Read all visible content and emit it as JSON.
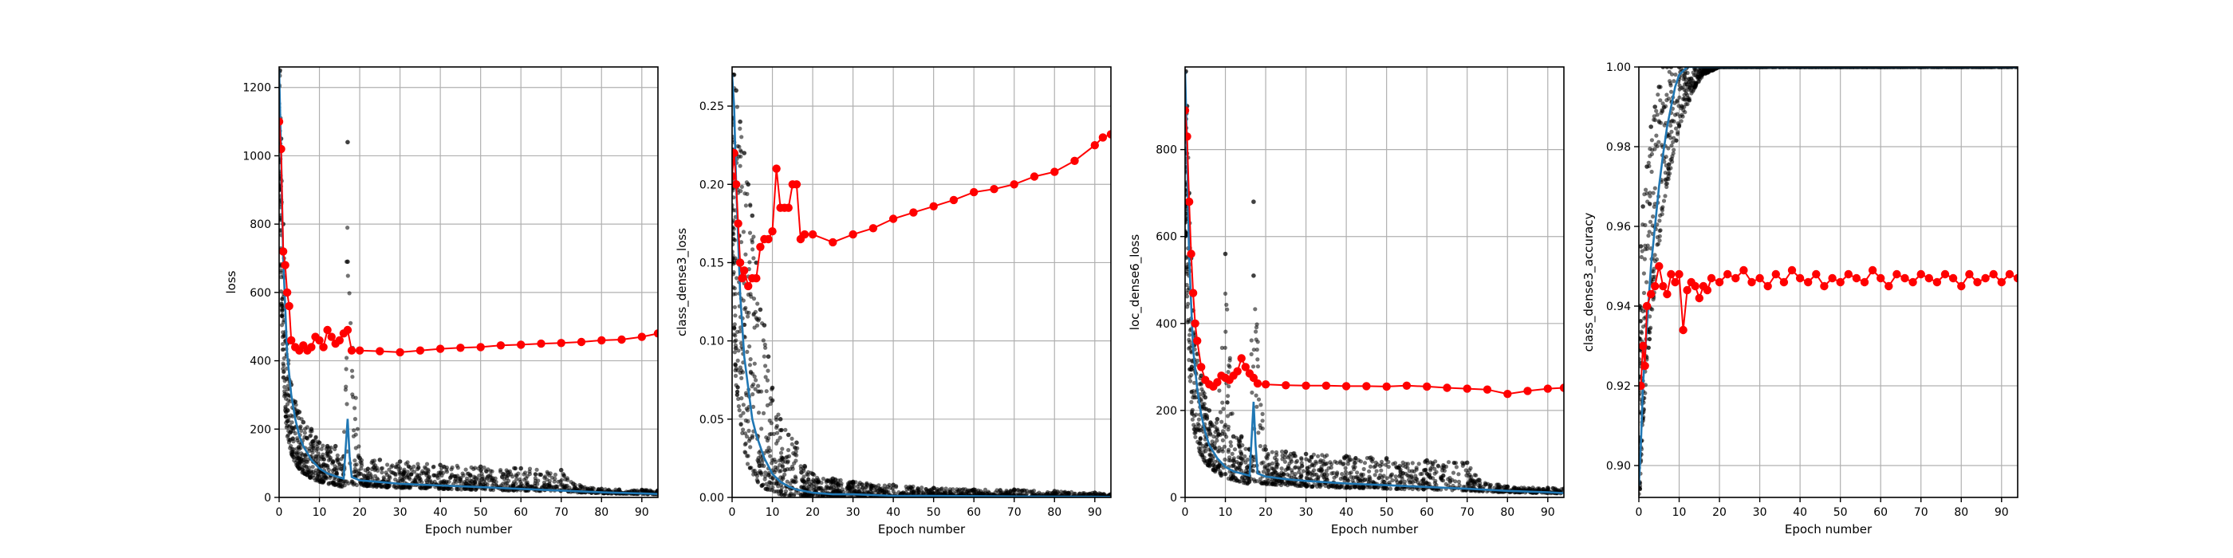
{
  "chart_data": [
    {
      "type": "scatter",
      "ylabel": "loss",
      "xlabel": "Epoch number",
      "xlim": [
        0,
        94
      ],
      "ylim": [
        0,
        1260
      ],
      "xticks": [
        0,
        10,
        20,
        30,
        40,
        50,
        60,
        70,
        80,
        90
      ],
      "yticks": [
        0,
        200,
        400,
        600,
        800,
        1000,
        1200
      ],
      "grid": true,
      "series": [
        {
          "role": "train_batches",
          "color": "#000000",
          "shape": "small dots",
          "x": [
            0.2,
            0.5,
            1,
            1.5,
            2,
            3,
            4,
            5,
            6,
            8,
            10,
            12,
            14,
            16,
            17,
            17,
            20,
            25,
            30,
            40,
            50,
            60,
            70,
            73,
            80,
            90,
            94
          ],
          "y_low": [
            900,
            600,
            350,
            250,
            180,
            130,
            100,
            80,
            70,
            55,
            45,
            40,
            35,
            30,
            40,
            40,
            35,
            30,
            28,
            25,
            22,
            20,
            18,
            15,
            12,
            10,
            9
          ],
          "y_high": [
            1250,
            1050,
            800,
            600,
            450,
            330,
            280,
            250,
            220,
            200,
            160,
            150,
            150,
            120,
            1040,
            690,
            115,
            110,
            105,
            95,
            90,
            85,
            80,
            40,
            25,
            22,
            20
          ]
        },
        {
          "role": "train_mean",
          "color": "#1f77b4",
          "x": [
            0,
            0.5,
            1,
            2,
            3,
            4,
            5,
            6,
            8,
            10,
            12,
            14,
            16,
            17,
            17.5,
            18,
            20,
            25,
            30,
            40,
            50,
            60,
            70,
            80,
            90,
            94
          ],
          "y": [
            1250,
            1000,
            700,
            420,
            300,
            230,
            180,
            150,
            110,
            85,
            70,
            62,
            55,
            230,
            120,
            60,
            50,
            45,
            40,
            35,
            30,
            25,
            20,
            15,
            12,
            10
          ]
        },
        {
          "role": "validation",
          "color": "#ff0000",
          "x": [
            0,
            0.5,
            1,
            1.5,
            2,
            2.5,
            3,
            4,
            5,
            6,
            7,
            8,
            9,
            10,
            11,
            12,
            13,
            14,
            15,
            16,
            17,
            18,
            20,
            25,
            30,
            35,
            40,
            45,
            50,
            55,
            60,
            65,
            70,
            75,
            80,
            85,
            90,
            94
          ],
          "y": [
            1100,
            1020,
            720,
            680,
            600,
            560,
            460,
            440,
            430,
            445,
            430,
            440,
            470,
            460,
            440,
            490,
            470,
            450,
            460,
            480,
            490,
            430,
            430,
            428,
            425,
            430,
            435,
            438,
            440,
            445,
            447,
            450,
            452,
            455,
            460,
            462,
            470,
            480
          ]
        }
      ]
    },
    {
      "type": "scatter",
      "ylabel": "class_dense3_loss",
      "xlabel": "Epoch number",
      "xlim": [
        0,
        94
      ],
      "ylim": [
        0,
        0.275
      ],
      "xticks": [
        0,
        10,
        20,
        30,
        40,
        50,
        60,
        70,
        80,
        90
      ],
      "yticks": [
        0.0,
        0.05,
        0.1,
        0.15,
        0.2,
        0.25
      ],
      "grid": true,
      "series": [
        {
          "role": "train_batches",
          "color": "#000000",
          "shape": "small dots",
          "x": [
            0.2,
            0.5,
            1,
            2,
            3,
            4,
            5,
            6,
            7,
            8,
            9,
            10,
            12,
            14,
            16,
            18,
            20,
            25,
            30,
            40,
            50,
            60,
            70,
            80,
            90,
            94
          ],
          "y_low": [
            0.15,
            0.1,
            0.07,
            0.05,
            0.03,
            0.02,
            0.015,
            0.01,
            0.008,
            0.006,
            0.004,
            0.003,
            0.002,
            0.001,
            0.001,
            0.001,
            0.001,
            0.0008,
            0.0006,
            0.0004,
            0.0003,
            0.0002,
            0.0002,
            0.0001,
            0.0001,
            0.0001
          ],
          "y_high": [
            0.27,
            0.27,
            0.26,
            0.24,
            0.22,
            0.2,
            0.18,
            0.15,
            0.12,
            0.11,
            0.09,
            0.07,
            0.05,
            0.04,
            0.035,
            0.02,
            0.015,
            0.012,
            0.01,
            0.008,
            0.006,
            0.005,
            0.005,
            0.004,
            0.003,
            0.002
          ]
        },
        {
          "role": "train_mean",
          "color": "#1f77b4",
          "x": [
            0,
            0.5,
            1,
            2,
            3,
            4,
            5,
            6,
            8,
            10,
            12,
            14,
            16,
            18,
            20,
            25,
            30,
            40,
            50,
            60,
            70,
            80,
            90,
            94
          ],
          "y": [
            0.27,
            0.25,
            0.2,
            0.13,
            0.09,
            0.07,
            0.05,
            0.04,
            0.025,
            0.015,
            0.01,
            0.007,
            0.005,
            0.004,
            0.003,
            0.002,
            0.002,
            0.001,
            0.001,
            0.0008,
            0.0006,
            0.0005,
            0.0004,
            0.0003
          ]
        },
        {
          "role": "validation",
          "color": "#ff0000",
          "x": [
            0,
            0.5,
            1,
            1.5,
            2,
            2.5,
            3,
            4,
            5,
            6,
            7,
            8,
            9,
            10,
            11,
            12,
            13,
            14,
            15,
            16,
            17,
            18,
            20,
            25,
            30,
            35,
            40,
            45,
            50,
            55,
            60,
            65,
            70,
            75,
            80,
            85,
            90,
            92,
            94
          ],
          "y": [
            0.205,
            0.22,
            0.2,
            0.175,
            0.15,
            0.14,
            0.145,
            0.135,
            0.14,
            0.14,
            0.16,
            0.165,
            0.165,
            0.17,
            0.21,
            0.185,
            0.185,
            0.185,
            0.2,
            0.2,
            0.165,
            0.168,
            0.168,
            0.163,
            0.168,
            0.172,
            0.178,
            0.182,
            0.186,
            0.19,
            0.195,
            0.197,
            0.2,
            0.205,
            0.208,
            0.215,
            0.225,
            0.23,
            0.232
          ]
        }
      ]
    },
    {
      "type": "scatter",
      "ylabel": "loc_dense6_loss",
      "xlabel": "Epoch number",
      "xlim": [
        0,
        94
      ],
      "ylim": [
        0,
        990
      ],
      "xticks": [
        0,
        10,
        20,
        30,
        40,
        50,
        60,
        70,
        80,
        90
      ],
      "yticks": [
        0,
        200,
        400,
        600,
        800
      ],
      "grid": true,
      "series": [
        {
          "role": "train_batches",
          "color": "#000000",
          "shape": "small dots",
          "x": [
            0.2,
            0.5,
            1,
            1.5,
            2,
            3,
            4,
            5,
            6,
            8,
            10,
            12,
            14,
            16,
            17,
            17,
            20,
            25,
            30,
            40,
            50,
            60,
            70,
            73,
            80,
            90,
            94
          ],
          "y_low": [
            600,
            450,
            300,
            220,
            160,
            120,
            95,
            80,
            70,
            55,
            45,
            40,
            35,
            30,
            35,
            35,
            30,
            28,
            25,
            22,
            20,
            18,
            16,
            14,
            12,
            10,
            9
          ],
          "y_high": [
            980,
            900,
            700,
            550,
            430,
            330,
            280,
            230,
            200,
            180,
            560,
            140,
            140,
            110,
            680,
            510,
            110,
            105,
            100,
            95,
            90,
            85,
            80,
            40,
            25,
            22,
            20
          ]
        },
        {
          "role": "train_mean",
          "color": "#1f77b4",
          "x": [
            0,
            0.5,
            1,
            2,
            3,
            4,
            5,
            6,
            8,
            10,
            12,
            14,
            16,
            17,
            17.5,
            18,
            20,
            25,
            30,
            40,
            50,
            60,
            70,
            80,
            90,
            94
          ],
          "y": [
            980,
            800,
            550,
            340,
            250,
            190,
            150,
            120,
            90,
            70,
            60,
            55,
            50,
            220,
            120,
            55,
            48,
            42,
            38,
            32,
            28,
            24,
            20,
            15,
            12,
            10
          ]
        },
        {
          "role": "validation",
          "color": "#ff0000",
          "x": [
            0,
            0.5,
            1,
            1.5,
            2,
            2.5,
            3,
            4,
            5,
            6,
            7,
            8,
            9,
            10,
            11,
            12,
            13,
            14,
            15,
            16,
            17,
            18,
            20,
            25,
            30,
            35,
            40,
            45,
            50,
            55,
            60,
            65,
            70,
            75,
            80,
            85,
            90,
            94
          ],
          "y": [
            890,
            830,
            680,
            560,
            470,
            400,
            360,
            300,
            270,
            260,
            255,
            265,
            280,
            275,
            270,
            280,
            290,
            320,
            300,
            285,
            275,
            262,
            260,
            258,
            257,
            257,
            256,
            256,
            255,
            257,
            255,
            252,
            250,
            248,
            238,
            245,
            250,
            252
          ]
        }
      ]
    },
    {
      "type": "scatter",
      "ylabel": "class_dense3_accuracy",
      "xlabel": "Epoch number",
      "xlim": [
        0,
        94
      ],
      "ylim": [
        0.892,
        1.0
      ],
      "xticks": [
        0,
        10,
        20,
        30,
        40,
        50,
        60,
        70,
        80,
        90
      ],
      "yticks": [
        0.9,
        0.92,
        0.94,
        0.96,
        0.98,
        1.0
      ],
      "grid": true,
      "series": [
        {
          "role": "train_batches",
          "color": "#000000",
          "shape": "small dots",
          "x": [
            0.2,
            0.5,
            1,
            2,
            3,
            4,
            5,
            6,
            7,
            8,
            10,
            12,
            14,
            16,
            18,
            20,
            30,
            40,
            50,
            60,
            70,
            80,
            90,
            94
          ],
          "y_low": [
            0.892,
            0.9,
            0.91,
            0.925,
            0.935,
            0.945,
            0.955,
            0.965,
            0.97,
            0.975,
            0.985,
            0.99,
            0.995,
            0.998,
            0.999,
            1.0,
            1.0,
            1.0,
            1.0,
            1.0,
            1.0,
            1.0,
            1.0,
            1.0
          ],
          "y_high": [
            0.94,
            0.955,
            0.965,
            0.975,
            0.985,
            0.99,
            0.995,
            1.0,
            1.0,
            1.0,
            1.0,
            1.0,
            1.0,
            1.0,
            1.0,
            1.0,
            1.0,
            1.0,
            1.0,
            1.0,
            1.0,
            1.0,
            1.0,
            1.0
          ]
        },
        {
          "role": "train_mean",
          "color": "#1f77b4",
          "x": [
            0,
            0.5,
            1,
            2,
            3,
            4,
            5,
            6,
            7,
            8,
            9,
            10,
            12,
            14,
            20,
            30,
            50,
            70,
            94
          ],
          "y": [
            0.895,
            0.905,
            0.92,
            0.935,
            0.95,
            0.96,
            0.97,
            0.978,
            0.985,
            0.99,
            0.995,
            0.998,
            1.0,
            1.0,
            1.0,
            1.0,
            1.0,
            1.0,
            1.0
          ]
        },
        {
          "role": "validation",
          "color": "#ff0000",
          "x": [
            0.5,
            1,
            1.5,
            2,
            3,
            4,
            5,
            6,
            7,
            8,
            9,
            10,
            11,
            12,
            13,
            14,
            15,
            16,
            17,
            18,
            20,
            22,
            24,
            26,
            28,
            30,
            32,
            34,
            36,
            38,
            40,
            42,
            44,
            46,
            48,
            50,
            52,
            54,
            56,
            58,
            60,
            62,
            64,
            66,
            68,
            70,
            72,
            74,
            76,
            78,
            80,
            82,
            84,
            86,
            88,
            90,
            92,
            94
          ],
          "y": [
            0.92,
            0.93,
            0.925,
            0.94,
            0.943,
            0.945,
            0.95,
            0.945,
            0.943,
            0.948,
            0.946,
            0.948,
            0.934,
            0.944,
            0.946,
            0.945,
            0.942,
            0.945,
            0.944,
            0.947,
            0.946,
            0.948,
            0.947,
            0.949,
            0.946,
            0.947,
            0.945,
            0.948,
            0.946,
            0.949,
            0.947,
            0.946,
            0.948,
            0.945,
            0.947,
            0.946,
            0.948,
            0.947,
            0.946,
            0.949,
            0.947,
            0.945,
            0.948,
            0.947,
            0.946,
            0.948,
            0.947,
            0.946,
            0.948,
            0.947,
            0.945,
            0.948,
            0.946,
            0.947,
            0.948,
            0.946,
            0.948,
            0.947
          ]
        }
      ]
    }
  ]
}
